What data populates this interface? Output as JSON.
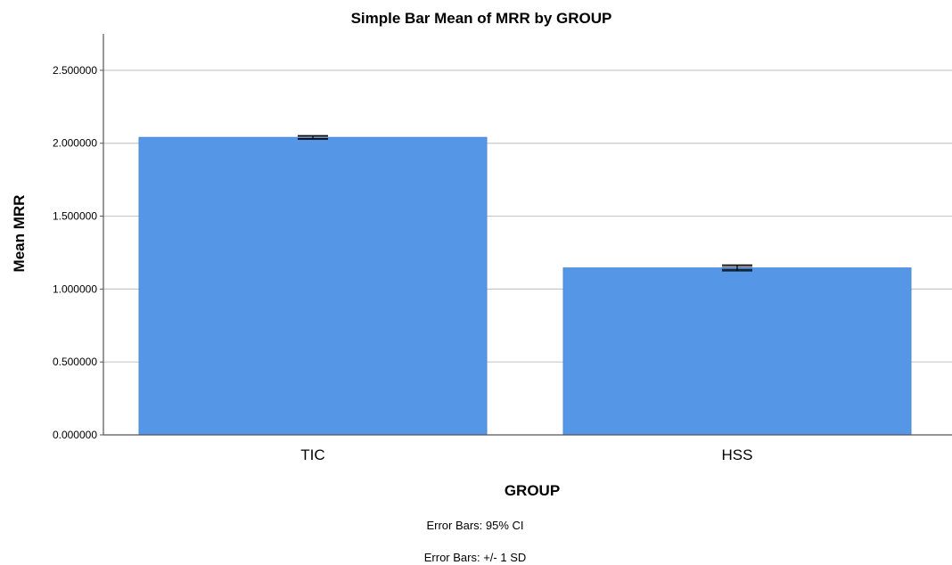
{
  "chart_data": {
    "type": "bar",
    "title": "Simple Bar Mean of MRR by GROUP",
    "xlabel": "GROUP",
    "ylabel": "Mean MRR",
    "categories": [
      "TIC",
      "HSS"
    ],
    "values": [
      2.04,
      1.145
    ],
    "error_bars": {
      "ci95": [
        [
          2.032,
          2.048
        ],
        [
          1.135,
          1.155
        ]
      ],
      "sd": [
        [
          2.028,
          2.052
        ],
        [
          1.125,
          1.165
        ]
      ]
    },
    "ylim": [
      0,
      2.75
    ],
    "yticks": [
      0.0,
      0.5,
      1.0,
      1.5,
      2.0,
      2.5
    ],
    "ytick_labels": [
      "0.000000",
      "0.500000",
      "1.000000",
      "1.500000",
      "2.000000",
      "2.500000"
    ],
    "grid": true,
    "bar_color": "#5596E6",
    "footnotes": [
      "Error Bars: 95% CI",
      "Error Bars: +/- 1 SD"
    ]
  }
}
